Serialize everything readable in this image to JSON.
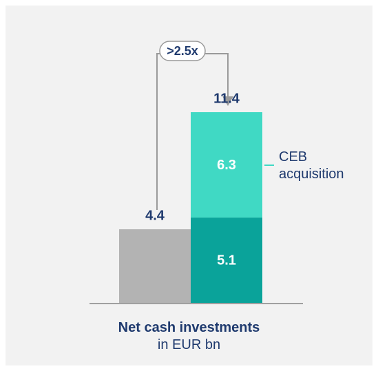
{
  "chart_data": {
    "type": "bar",
    "stacked": true,
    "title": "Net cash investments",
    "subtitle": "in EUR bn",
    "annotation": ">2.5x",
    "categories": [
      null,
      null
    ],
    "series": [
      {
        "color": "#b3b3b3",
        "values": [
          4.4,
          null
        ]
      },
      {
        "color": "#0aa39a",
        "values": [
          null,
          5.1
        ]
      },
      {
        "name": "CEB acquisition",
        "color": "#40d9c4",
        "values": [
          null,
          6.3
        ]
      }
    ],
    "totals": [
      4.4,
      11.4
    ]
  }
}
